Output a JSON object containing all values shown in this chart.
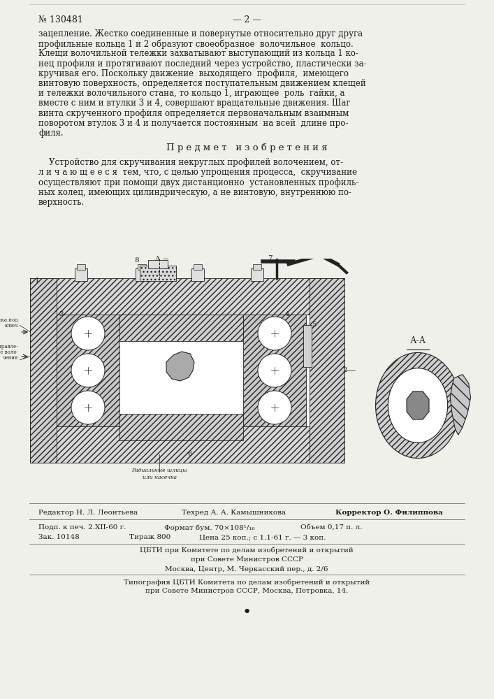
{
  "bg_color": "#f0f0eb",
  "header_number": "№ 130481",
  "header_page": "— 2 —",
  "text_paragraph1_lines": [
    "зацепление. Жестко соединенные и повернутые относительно друг друга",
    "профильные кольца 1 и 2 образуют своеобразное  волочильное  кольцо.",
    "Клещи волочильной тележки захватывают выступающий из кольца 1 ко-",
    "нец профиля и протягивают последний через устройство, пластически за-",
    "кручивая его. Поскольку движение  выходящего  профиля,  имеющего",
    "винтовую поверхность, определяется поступательным движением клещей",
    "и тележки волочильного стана, то кольцо 1, играющее  роль  гайки, а",
    "вместе с ним и втулки 3 и 4, совершают вращательные движения. Шаг",
    "винта скрученного профиля определяется первоначальным взаимным",
    "поворотом втулок 3 и 4 и получается постоянным  на всей  длине про-",
    "филя."
  ],
  "heading_predmet": "П р е д м е т   и з о б р е т е н и я",
  "text_paragraph2_lines": [
    "    Устройство для скручивания некруглых профилей волочением, от-",
    "л и ч а ю щ е е с я  тем, что, с целью упрощения процесса,  скручивание",
    "осуществляют при помощи двух дистанционно  установленных профиль-",
    "ных колец, имеющих цилиндрическую, а не винтовую, внутреннюю по-",
    "верхность."
  ],
  "footer_editor": "Редактор Н. Л. Леонтьева",
  "footer_techred": "Техред А. А. Камышникова",
  "footer_corrector": "Корректор О. Филиппова",
  "footer_line2a": "Подп. к печ. 2.XII-60 г.",
  "footer_line2b": "Формат бум. 70×108¹/₁₆",
  "footer_line2c": "Объем 0,17 п. л.",
  "footer_line3a": "Зак. 10148",
  "footer_line3b": "Тираж 800",
  "footer_line3c": "Цена 25 коп.; с 1.1-61 г. — 3 коп.",
  "footer_cbti1": "ЦБТИ при Комитете по делам изобретений и открытий",
  "footer_cbti2": "при Совете Министров СССР",
  "footer_moscow": "Москва, Центр, М. Черкасский пер., д. 2/6",
  "footer_typo1": "Типография ЦБТИ Комитета по делам изобретений и открытий",
  "footer_typo2": "при Совете Министров СССР, Москва, Петровка, 14.",
  "line_color": "#222222",
  "hatch_color": "#444444",
  "text_color": "#1a1a1a"
}
